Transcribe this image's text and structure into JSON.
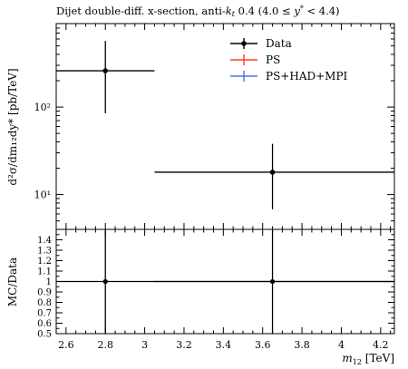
{
  "chart_data": {
    "type": "scatter",
    "title": "Dijet double-diff. x-section, anti-k_t 0.4 (4.0 ≤ y* < 4.4)",
    "title_parts": {
      "pre": "Dijet double-diff. x-section, anti-",
      "k": "k",
      "t": "t",
      "post1": " 0.4 (4.0 ≤ ",
      "y": "y",
      "star": "*",
      "post2": " < 4.4)"
    },
    "ylabel": "d²σ/dm₁₂dy* [pb/TeV]",
    "xlabel": "m₁₂ [TeV]",
    "xlabel_parts": {
      "m": "m",
      "sub": "12",
      "unit": "[TeV]"
    },
    "ratio_ylabel": "MC/Data",
    "xlim": [
      2.55,
      4.27
    ],
    "ylim_main": [
      4.0,
      900
    ],
    "y_scale": "log",
    "ylim_ratio": [
      0.5,
      1.5
    ],
    "x_tick_labels": [
      "2.6",
      "2.8",
      "3",
      "3.2",
      "3.4",
      "3.6",
      "3.8",
      "4",
      "4.2"
    ],
    "main_y_tick_labels": [
      "10²",
      "10¹"
    ],
    "ratio_y_tick_labels": [
      "1.4",
      "1.3",
      "1.2",
      "1.1",
      "1",
      "0.9",
      "0.8",
      "0.7",
      "0.6",
      "0.5"
    ],
    "legend": {
      "placement": "top-right",
      "entries": [
        {
          "label": "Data",
          "color": "#000000"
        },
        {
          "label": "PS",
          "color": "#ff3b1f"
        },
        {
          "label": "PS+HAD+MPI",
          "color": "#4a74e8"
        }
      ]
    },
    "series": [
      {
        "name": "Data",
        "points": [
          {
            "x": 2.8,
            "xlo": 2.55,
            "xhi": 3.05,
            "y": 260,
            "ylo": 85,
            "yhi": 570
          },
          {
            "x": 3.65,
            "xlo": 3.05,
            "xhi": 4.27,
            "y": 18,
            "ylo": 6.8,
            "yhi": 38
          }
        ]
      }
    ],
    "ratio_points": [
      {
        "x": 2.8,
        "xlo": 2.55,
        "xhi": 4.27,
        "y": 1.0,
        "ylo": 0.5,
        "yhi": 1.5
      },
      {
        "x": 3.65,
        "xlo": 3.05,
        "xhi": 4.27,
        "y": 1.0,
        "ylo": 0.5,
        "yhi": 1.5
      }
    ]
  }
}
